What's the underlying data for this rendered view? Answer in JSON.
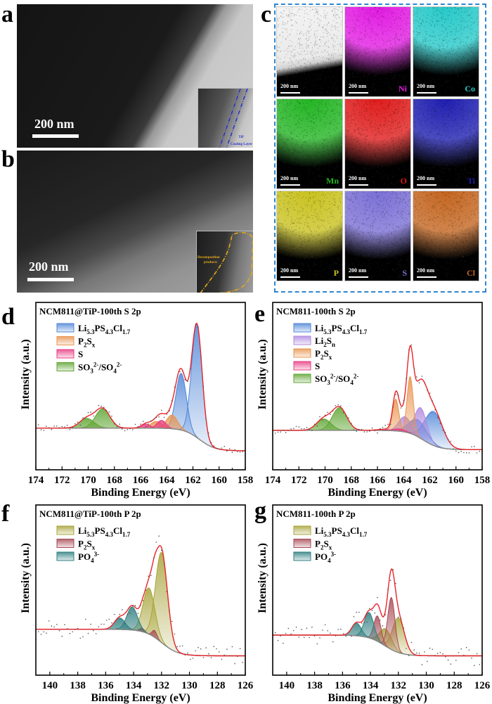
{
  "panels": {
    "a": {
      "label": "a",
      "scale_bar": "200 nm",
      "inset_text": [
        "TiP",
        "Coating Layer"
      ]
    },
    "b": {
      "label": "b",
      "scale_bar": "200 nm",
      "inset_text": [
        "Decomposition",
        "products"
      ]
    },
    "c": {
      "label": "c",
      "maps": [
        {
          "element": "",
          "scale_bar": "200 nm",
          "color": "#ffffff",
          "kind": "haadf"
        },
        {
          "element": "Ni",
          "scale_bar": "200 nm",
          "color": "#e31ae3"
        },
        {
          "element": "Co",
          "scale_bar": "200 nm",
          "color": "#27c9c9"
        },
        {
          "element": "Mn",
          "scale_bar": "200 nm",
          "color": "#22b522"
        },
        {
          "element": "O",
          "scale_bar": "200 nm",
          "color": "#e01b1b"
        },
        {
          "element": "Ti",
          "scale_bar": "200 nm",
          "color": "#1d1db0"
        },
        {
          "element": "P",
          "scale_bar": "200 nm",
          "color": "#c9c21f"
        },
        {
          "element": "S",
          "scale_bar": "200 nm",
          "color": "#7a6fd6"
        },
        {
          "element": "Cl",
          "scale_bar": "200 nm",
          "color": "#c4651f"
        }
      ]
    }
  },
  "chart_data": [
    {
      "id": "d",
      "panel_label": "d",
      "type": "area",
      "title": "NCM811@TiP-100th  S 2p",
      "xlabel": "Binding Energy (eV)",
      "ylabel": "Intensity (a.u.)",
      "xlim": [
        174,
        158
      ],
      "xticks": [
        174,
        172,
        170,
        168,
        166,
        164,
        162,
        160,
        158
      ],
      "grid": false,
      "legend_position": "top-left",
      "background": {
        "left": 0.22,
        "right": 0.02,
        "step_center": 161.5
      },
      "envelope_color": "#e8242a",
      "components": [
        {
          "name": "Li5.3PS4.3Cl1.7",
          "color": "#4f86d8",
          "peaks": [
            {
              "center": 161.7,
              "height": 1.0,
              "fwhm": 0.95
            },
            {
              "center": 162.9,
              "height": 0.5,
              "fwhm": 0.95
            }
          ]
        },
        {
          "name": "P2Sx",
          "color": "#e8944f",
          "peaks": [
            {
              "center": 163.6,
              "height": 0.12,
              "fwhm": 1.0
            },
            {
              "center": 164.8,
              "height": 0.06,
              "fwhm": 1.0
            }
          ]
        },
        {
          "name": "S",
          "color": "#e83d84",
          "peaks": [
            {
              "center": 164.4,
              "height": 0.07,
              "fwhm": 0.8
            },
            {
              "center": 165.6,
              "height": 0.035,
              "fwhm": 0.8
            }
          ]
        },
        {
          "name": "SO3 2-/SO4 2-",
          "color": "#5fa532",
          "peaks": [
            {
              "center": 168.9,
              "height": 0.17,
              "fwhm": 1.3
            },
            {
              "center": 170.1,
              "height": 0.085,
              "fwhm": 1.3
            }
          ]
        }
      ],
      "legend": [
        {
          "base": "Li",
          "sub1": "5.3",
          "mid": "PS",
          "sub2": "4.3",
          "end": "Cl",
          "sub3": "1.7",
          "color": "#4f86d8"
        },
        {
          "base": "P",
          "sub1": "2",
          "mid": "S",
          "sub2": "x",
          "color": "#e8944f"
        },
        {
          "base": "S",
          "color": "#e83d84"
        },
        {
          "base": "SO",
          "sub1": "3",
          "sup1": "2-",
          "mid": "/SO",
          "sub2": "4",
          "sup2": "2-",
          "color": "#5fa532"
        }
      ]
    },
    {
      "id": "e",
      "panel_label": "e",
      "type": "area",
      "title": "NCM811-100th  S 2p",
      "xlabel": "Binding Energy (eV)",
      "ylabel": "Intensity (a.u.)",
      "xlim": [
        174,
        158
      ],
      "xticks": [
        174,
        172,
        170,
        168,
        166,
        164,
        162,
        160,
        158
      ],
      "grid": false,
      "legend_position": "top-left",
      "background": {
        "left": 0.2,
        "right": 0.03,
        "step_center": 162.5
      },
      "envelope_color": "#e8242a",
      "components": [
        {
          "name": "Li5.3PS4.3Cl1.7",
          "color": "#4f86d8",
          "peaks": [
            {
              "center": 161.7,
              "height": 0.3,
              "fwhm": 1.6
            },
            {
              "center": 162.9,
              "height": 0.15,
              "fwhm": 1.6
            }
          ]
        },
        {
          "name": "Li2Sn",
          "color": "#b08ae0",
          "peaks": [
            {
              "center": 162.7,
              "height": 0.27,
              "fwhm": 1.1
            },
            {
              "center": 163.9,
              "height": 0.135,
              "fwhm": 1.1
            }
          ]
        },
        {
          "name": "P2Sx",
          "color": "#e8944f",
          "peaks": [
            {
              "center": 163.5,
              "height": 0.5,
              "fwhm": 0.55
            },
            {
              "center": 164.6,
              "height": 0.28,
              "fwhm": 0.55
            }
          ]
        },
        {
          "name": "S",
          "color": "#e83d84",
          "peaks": [
            {
              "center": 164.3,
              "height": 0.02,
              "fwhm": 1.2
            },
            {
              "center": 165.5,
              "height": 0.01,
              "fwhm": 1.2
            }
          ]
        },
        {
          "name": "SO3 2-/SO4 2-",
          "color": "#5fa532",
          "peaks": [
            {
              "center": 168.9,
              "height": 0.2,
              "fwhm": 1.3
            },
            {
              "center": 170.1,
              "height": 0.1,
              "fwhm": 1.3
            }
          ]
        }
      ],
      "legend": [
        {
          "base": "Li",
          "sub1": "5.3",
          "mid": "PS",
          "sub2": "4.3",
          "end": "Cl",
          "sub3": "1.7",
          "color": "#4f86d8"
        },
        {
          "base": "Li",
          "sub1": "2",
          "mid": "S",
          "sub2": "n",
          "color": "#b08ae0"
        },
        {
          "base": "P",
          "sub1": "2",
          "mid": "S",
          "sub2": "x",
          "color": "#e8944f"
        },
        {
          "base": "S",
          "color": "#e83d84"
        },
        {
          "base": "SO",
          "sub1": "3",
          "sup1": "2-",
          "mid": "/SO",
          "sub2": "4",
          "sup2": "2-",
          "color": "#5fa532"
        }
      ]
    },
    {
      "id": "f",
      "panel_label": "f",
      "type": "area",
      "title": "NCM811@TiP-100th  P 2p",
      "xlabel": "Binding Energy (eV)",
      "ylabel": "Intensity (a.u.)",
      "xlim": [
        141,
        126
      ],
      "xticks": [
        140,
        138,
        136,
        134,
        132,
        130,
        128,
        126
      ],
      "grid": false,
      "legend_position": "top-left",
      "background": {
        "left": 0.25,
        "right": 0.02,
        "step_center": 132.0
      },
      "envelope_color": "#e8242a",
      "components": [
        {
          "name": "Li5.3PS4.3Cl1.7",
          "color": "#a8a43a",
          "peaks": [
            {
              "center": 132.0,
              "height": 0.78,
              "fwhm": 1.0
            },
            {
              "center": 132.9,
              "height": 0.4,
              "fwhm": 1.0
            }
          ]
        },
        {
          "name": "P2Sx",
          "color": "#a84a55",
          "peaks": [
            {
              "center": 132.5,
              "height": 0.06,
              "fwhm": 0.4
            },
            {
              "center": 133.4,
              "height": 0.03,
              "fwhm": 0.4
            }
          ]
        },
        {
          "name": "PO4 3-",
          "color": "#2f7f80",
          "peaks": [
            {
              "center": 134.1,
              "height": 0.2,
              "fwhm": 0.9
            },
            {
              "center": 135.0,
              "height": 0.1,
              "fwhm": 0.9
            }
          ]
        }
      ],
      "legend": [
        {
          "base": "Li",
          "sub1": "5.3",
          "mid": "PS",
          "sub2": "4.3",
          "end": "Cl",
          "sub3": "1.7",
          "color": "#a8a43a"
        },
        {
          "base": "P",
          "sub1": "2",
          "mid": "S",
          "sub2": "x",
          "color": "#a84a55"
        },
        {
          "base": "PO",
          "sub1": "4",
          "sup1": "3-",
          "color": "#2f7f80"
        }
      ]
    },
    {
      "id": "g",
      "panel_label": "g",
      "type": "area",
      "title": "NCM811-100th  P 2p",
      "xlabel": "Binding Energy (eV)",
      "ylabel": "Intensity (a.u.)",
      "xlim": [
        141,
        126
      ],
      "xticks": [
        140,
        138,
        136,
        134,
        132,
        130,
        128,
        126
      ],
      "grid": false,
      "legend_position": "top-left",
      "background": {
        "left": 0.2,
        "right": 0.02,
        "step_center": 133.0
      },
      "envelope_color": "#e8242a",
      "components": [
        {
          "name": "Li5.3PS4.3Cl1.7",
          "color": "#a8a43a",
          "peaks": [
            {
              "center": 132.0,
              "height": 0.3,
              "fwhm": 1.0
            },
            {
              "center": 132.9,
              "height": 0.15,
              "fwhm": 1.0
            }
          ]
        },
        {
          "name": "P2Sx",
          "color": "#a84a55",
          "peaks": [
            {
              "center": 132.5,
              "height": 0.45,
              "fwhm": 0.6
            },
            {
              "center": 133.5,
              "height": 0.22,
              "fwhm": 0.6
            }
          ]
        },
        {
          "name": "PO4 3-",
          "color": "#2f7f80",
          "peaks": [
            {
              "center": 134.1,
              "height": 0.22,
              "fwhm": 0.8
            },
            {
              "center": 135.0,
              "height": 0.11,
              "fwhm": 0.8
            }
          ]
        }
      ],
      "legend": [
        {
          "base": "Li",
          "sub1": "5.3",
          "mid": "PS",
          "sub2": "4.3",
          "end": "Cl",
          "sub3": "1.7",
          "color": "#a8a43a"
        },
        {
          "base": "P",
          "sub1": "2",
          "mid": "S",
          "sub2": "x",
          "color": "#a84a55"
        },
        {
          "base": "PO",
          "sub1": "4",
          "sup1": "3-",
          "color": "#2f7f80"
        }
      ]
    }
  ]
}
